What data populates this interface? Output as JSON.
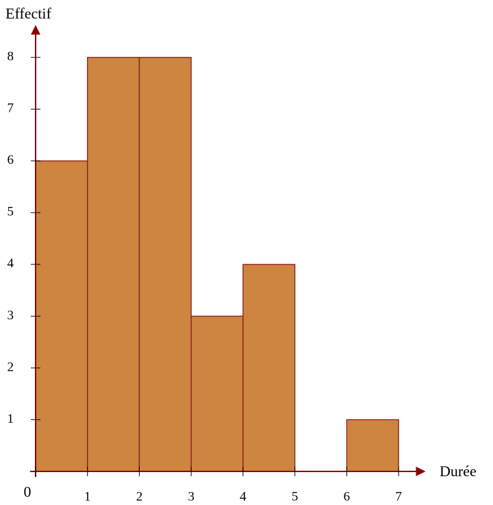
{
  "chart_data": {
    "type": "histogram",
    "xlabel": "Durée",
    "ylabel": "Effectif",
    "bins": [
      0,
      1,
      2,
      3,
      4,
      5,
      6,
      7
    ],
    "counts": [
      6,
      8,
      8,
      3,
      4,
      0,
      1
    ],
    "color": "#cd853f",
    "edgecolor": "#8b1a1a",
    "axis_color": "#8b0000",
    "xlim": [
      0,
      7.5
    ],
    "ylim": [
      0,
      8.5
    ],
    "xticks": [
      0,
      1,
      2,
      3,
      4,
      5,
      6,
      7
    ],
    "yticks": [
      1,
      2,
      3,
      4,
      5,
      6,
      7,
      8
    ]
  }
}
